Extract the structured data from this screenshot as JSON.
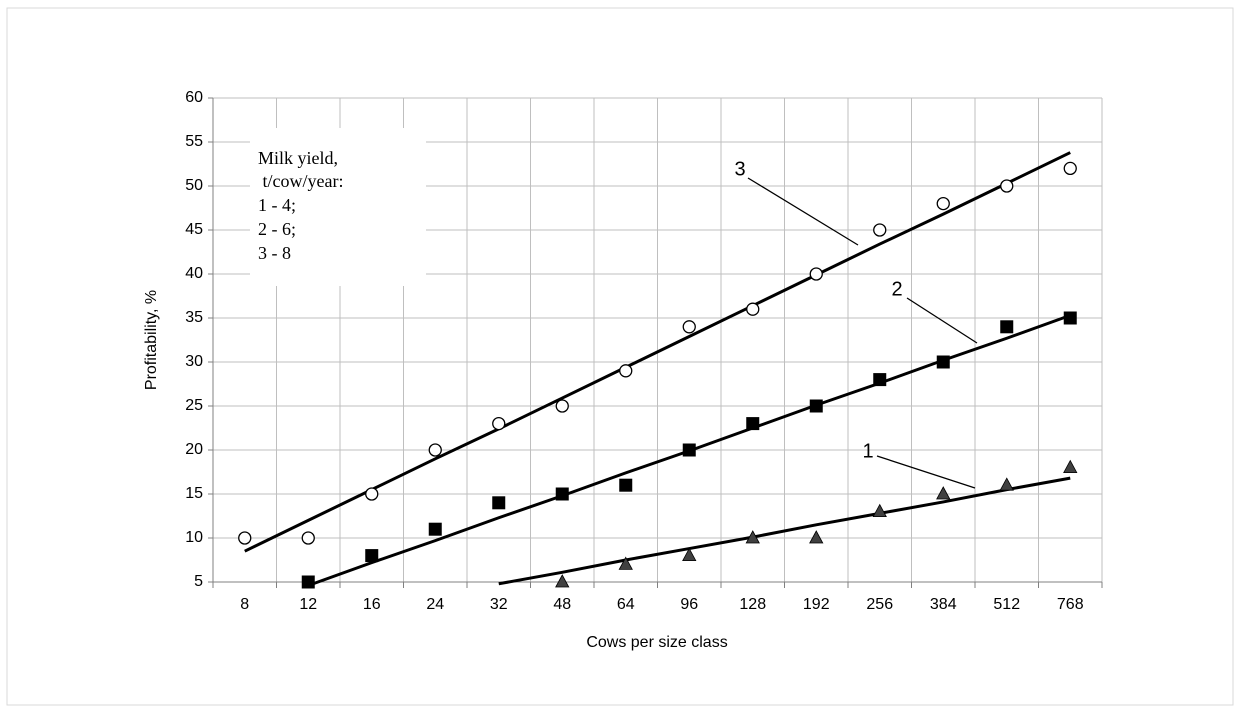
{
  "chart_data": {
    "type": "scatter-trend",
    "xlabel": "Cows per size class",
    "ylabel": "Profitability, %",
    "categories": [
      "8",
      "12",
      "16",
      "24",
      "32",
      "48",
      "64",
      "96",
      "128",
      "192",
      "256",
      "384",
      "512",
      "768"
    ],
    "ylim": [
      5,
      60
    ],
    "yticks": [
      5,
      10,
      15,
      20,
      25,
      30,
      35,
      40,
      45,
      50,
      55,
      60
    ],
    "grid": true,
    "legend_text": [
      "Milk yield,",
      " t/cow/year:",
      "1 - 4;",
      "2 - 6;",
      "3 - 8"
    ],
    "series": [
      {
        "name": "1",
        "marker": "triangle",
        "color": "#404040",
        "line_color": "#000000",
        "values": [
          null,
          null,
          null,
          null,
          null,
          5,
          7,
          8,
          10,
          10,
          13,
          15,
          16,
          18
        ],
        "trend": [
          null,
          null,
          null,
          null,
          4.8,
          6.1,
          7.5,
          8.8,
          10.1,
          11.5,
          12.8,
          14.1,
          15.5,
          16.8
        ]
      },
      {
        "name": "2",
        "marker": "square",
        "color": "#000000",
        "line_color": "#000000",
        "values": [
          null,
          5,
          8,
          11,
          14,
          15,
          16,
          20,
          23,
          25,
          28,
          30,
          34,
          35
        ],
        "trend": [
          null,
          4.6,
          7.2,
          9.7,
          12.3,
          14.8,
          17.4,
          19.9,
          22.5,
          25.1,
          27.6,
          30.2,
          32.7,
          35.3
        ]
      },
      {
        "name": "3",
        "marker": "circle",
        "color": "#ffffff",
        "line_color": "#000000",
        "values": [
          10,
          10,
          15,
          20,
          23,
          25,
          29,
          34,
          36,
          40,
          45,
          48,
          50,
          52
        ],
        "trend": [
          8.5,
          12.0,
          15.5,
          19.0,
          22.4,
          25.9,
          29.4,
          32.9,
          36.4,
          39.9,
          43.4,
          46.8,
          50.3,
          53.8
        ]
      }
    ]
  }
}
